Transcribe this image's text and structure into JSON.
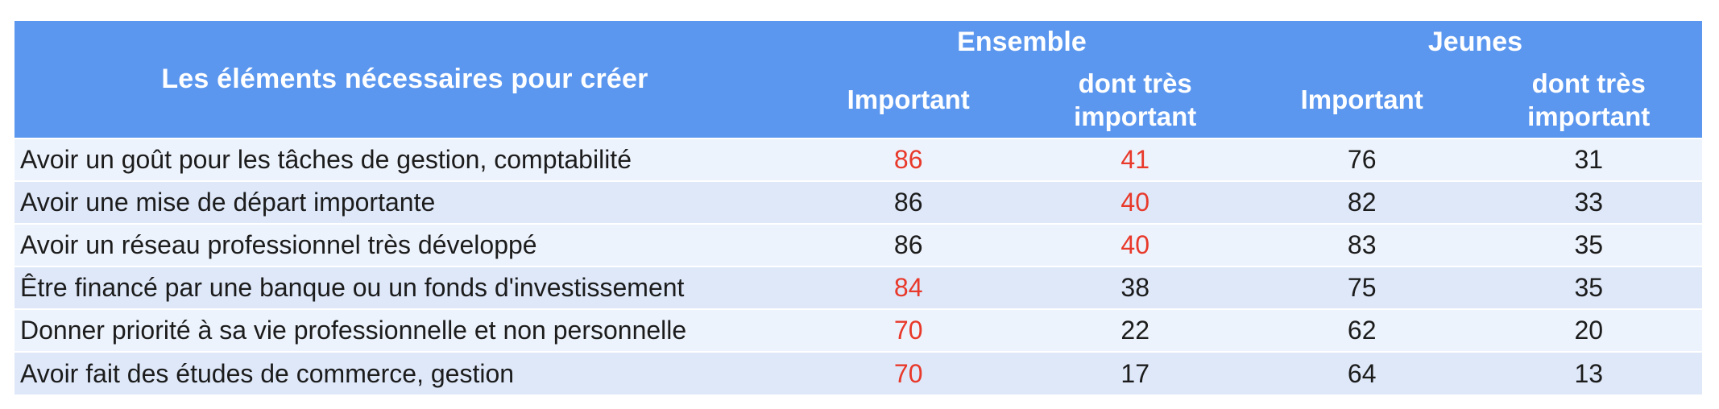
{
  "colors": {
    "header_bg": "#5B97EF",
    "row_light": "#EDF3FC",
    "row_dark": "#DEE8F9",
    "accent_red": "#E8392B",
    "text_dark": "#1C1C1C",
    "header_text": "#FFFFFF"
  },
  "table": {
    "title": "Les éléments nécessaires pour créer",
    "group_headers": [
      {
        "label": "Ensemble"
      },
      {
        "label": "Jeunes"
      }
    ],
    "sub_headers": [
      "Important",
      "dont très important",
      "Important",
      "dont très important"
    ],
    "rows": [
      {
        "label": "Avoir un goût pour les tâches de gestion, comptabilité",
        "cells": [
          {
            "text": "86",
            "emphasis": "red"
          },
          {
            "text": "41",
            "emphasis": "red"
          },
          {
            "text": "76",
            "emphasis": "normal"
          },
          {
            "text": "31",
            "emphasis": "normal"
          }
        ]
      },
      {
        "label": "Avoir une mise de départ importante",
        "cells": [
          {
            "text": "86",
            "emphasis": "normal"
          },
          {
            "text": "40",
            "emphasis": "red"
          },
          {
            "text": "82",
            "emphasis": "normal"
          },
          {
            "text": "33",
            "emphasis": "normal"
          }
        ]
      },
      {
        "label": "Avoir un réseau professionnel très développé",
        "cells": [
          {
            "text": "86",
            "emphasis": "normal"
          },
          {
            "text": "40",
            "emphasis": "red"
          },
          {
            "text": "83",
            "emphasis": "normal"
          },
          {
            "text": "35",
            "emphasis": "normal"
          }
        ]
      },
      {
        "label": "Être financé par une banque ou un fonds d'investissement",
        "cells": [
          {
            "text": "84",
            "emphasis": "red"
          },
          {
            "text": "38",
            "emphasis": "normal"
          },
          {
            "text": "75",
            "emphasis": "normal"
          },
          {
            "text": "35",
            "emphasis": "normal"
          }
        ]
      },
      {
        "label": "Donner priorité à sa vie professionnelle et non personnelle",
        "cells": [
          {
            "text": "70",
            "emphasis": "red"
          },
          {
            "text": "22",
            "emphasis": "normal"
          },
          {
            "text": "62",
            "emphasis": "normal"
          },
          {
            "text": "20",
            "emphasis": "normal"
          }
        ]
      },
      {
        "label": "Avoir fait des études de commerce, gestion",
        "cells": [
          {
            "text": "70",
            "emphasis": "red"
          },
          {
            "text": "17",
            "emphasis": "normal"
          },
          {
            "text": "64",
            "emphasis": "normal"
          },
          {
            "text": "13",
            "emphasis": "normal"
          }
        ]
      }
    ]
  },
  "chart_data": {
    "type": "table",
    "title": "Les éléments nécessaires pour créer",
    "categories": [
      "Avoir un goût pour les tâches de gestion, comptabilité",
      "Avoir une mise de départ importante",
      "Avoir un réseau professionnel très développé",
      "Être financé par une banque ou un fonds d'investissement",
      "Donner priorité à sa vie professionnelle et non personnelle",
      "Avoir fait des études de commerce, gestion"
    ],
    "series": [
      {
        "name": "Ensemble - Important",
        "values": [
          86,
          86,
          86,
          84,
          70,
          70
        ]
      },
      {
        "name": "Ensemble - dont très important",
        "values": [
          41,
          40,
          40,
          38,
          22,
          17
        ]
      },
      {
        "name": "Jeunes - Important",
        "values": [
          76,
          82,
          83,
          75,
          62,
          64
        ]
      },
      {
        "name": "Jeunes - dont très important",
        "values": [
          31,
          33,
          35,
          35,
          20,
          13
        ]
      }
    ],
    "red_highlighted_values": [
      {
        "row": 0,
        "series": "Ensemble - Important",
        "value": 86
      },
      {
        "row": 0,
        "series": "Ensemble - dont très important",
        "value": 41
      },
      {
        "row": 1,
        "series": "Ensemble - dont très important",
        "value": 40
      },
      {
        "row": 2,
        "series": "Ensemble - dont très important",
        "value": 40
      },
      {
        "row": 3,
        "series": "Ensemble - Important",
        "value": 84
      },
      {
        "row": 4,
        "series": "Ensemble - Important",
        "value": 70
      },
      {
        "row": 5,
        "series": "Ensemble - Important",
        "value": 70
      }
    ],
    "legend_position": "none",
    "grid": false
  }
}
